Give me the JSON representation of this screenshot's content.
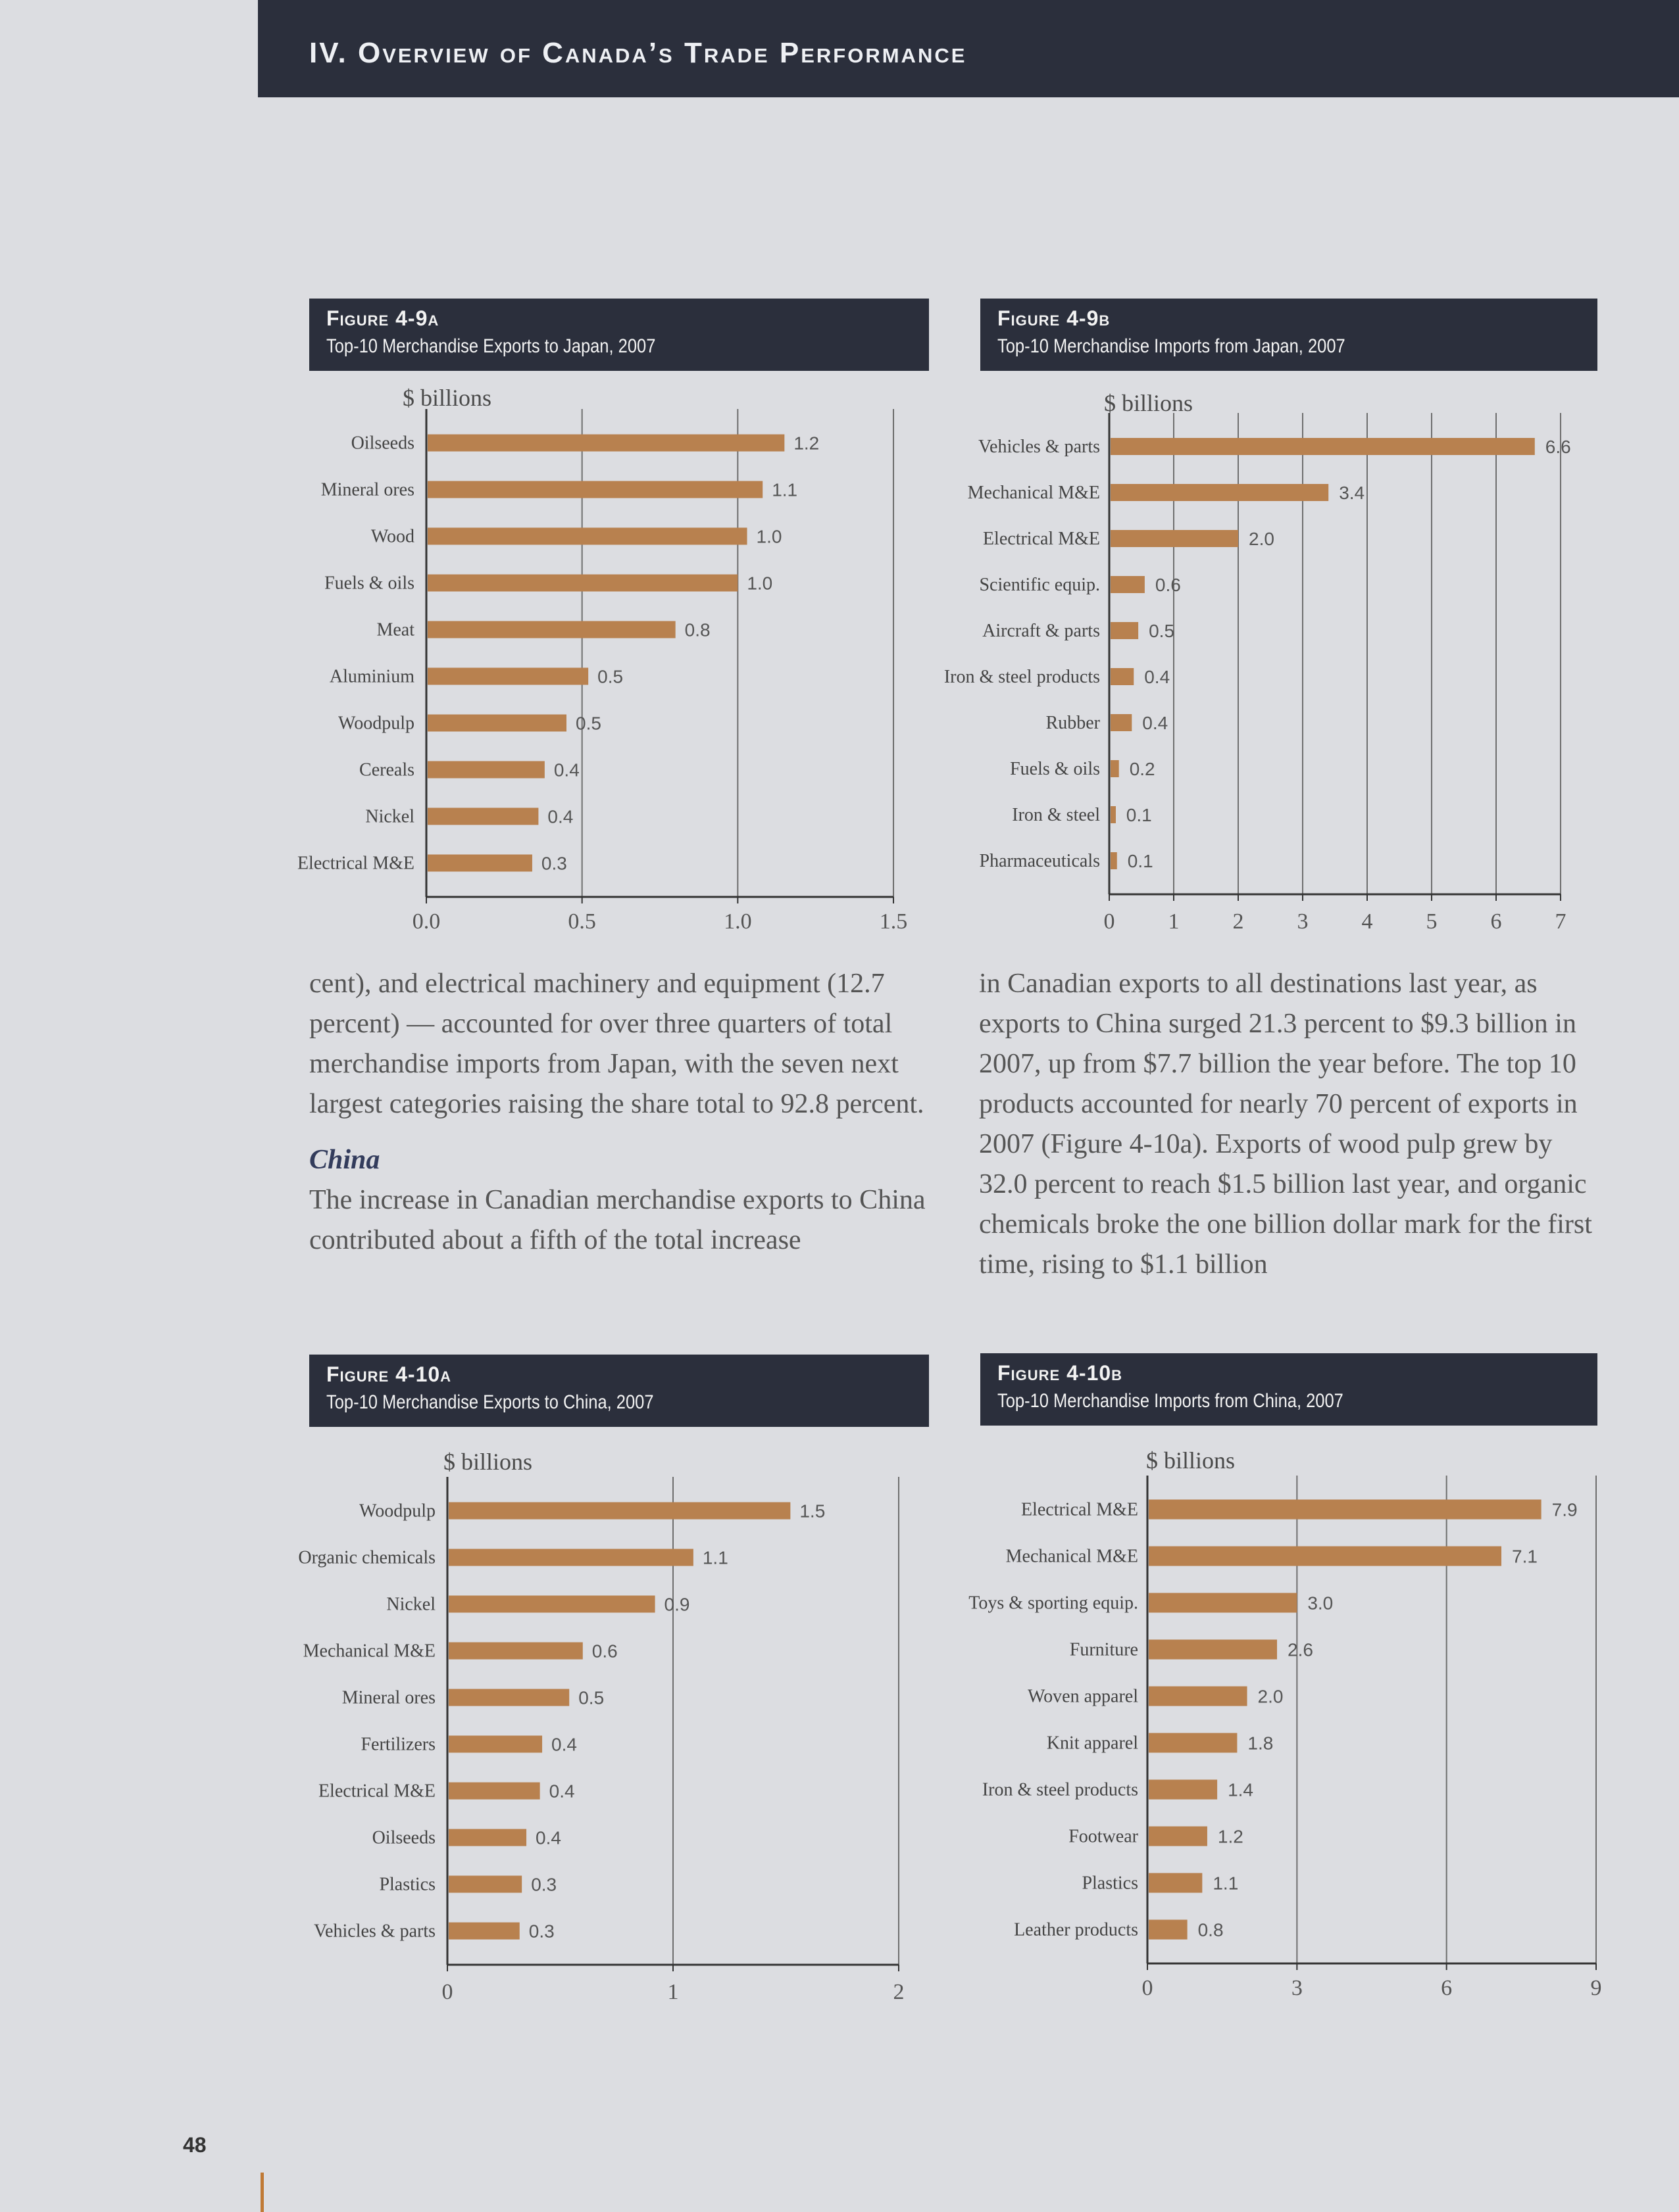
{
  "header": {
    "title": "IV. Overview of Canada’s Trade Performance"
  },
  "page_number": "48",
  "colors": {
    "bar": "#b8814f",
    "header_bg": "#2b2f3c",
    "heading_blue": "#333c5c"
  },
  "text": {
    "left_para": "cent), and electrical machinery and equipment (12.7 percent) — accounted for over three quarters of total merchandise imports from Japan, with the seven next largest categories raising the share total to 92.8 percent.",
    "china_heading": "China",
    "china_para": "The increase in Canadian merchandise exports to China contributed about a fifth of the total increase",
    "right_para": "in Canadian exports to all destinations last year, as exports to China surged 21.3 percent to $9.3 billion in 2007, up from $7.7 billion the year before. The top 10 products accounted for nearly 70 percent of exports in 2007 (Figure 4-10a). Exports of wood pulp grew by 32.0 percent to reach $1.5 billion last year, and organic chemicals broke the one billion dollar mark for the first time, rising to $1.1 billion"
  },
  "figures": [
    {
      "number": "Figure 4-9a",
      "title": "Top-10 Merchandise Exports to Japan, 2007",
      "unit": "$ billions"
    },
    {
      "number": "Figure 4-9b",
      "title": "Top-10 Merchandise Imports from Japan, 2007",
      "unit": "$ billions"
    },
    {
      "number": "Figure 4-10a",
      "title": "Top-10 Merchandise Exports to China, 2007",
      "unit": "$ billions"
    },
    {
      "number": "Figure 4-10b",
      "title": "Top-10 Merchandise Imports from China, 2007",
      "unit": "$ billions"
    }
  ],
  "chart_data": [
    {
      "type": "bar",
      "title": "Top-10 Merchandise Exports to Japan, 2007",
      "ylabel": "$ billions",
      "categories": [
        "Oilseeds",
        "Mineral ores",
        "Wood",
        "Fuels & oils",
        "Meat",
        "Aluminium",
        "Woodpulp",
        "Cereals",
        "Nickel",
        "Electrical M&E"
      ],
      "values": [
        1.15,
        1.08,
        1.03,
        1.0,
        0.8,
        0.52,
        0.45,
        0.38,
        0.36,
        0.34
      ],
      "value_labels": [
        "1.2",
        "1.1",
        "1.0",
        "1.0",
        "0.8",
        "0.5",
        "0.5",
        "0.4",
        "0.4",
        "0.3"
      ],
      "xlim": [
        0,
        1.5
      ],
      "ticks": [
        "0.0",
        "0.5",
        "1.0",
        "1.5"
      ],
      "tick_values": [
        0,
        0.5,
        1.0,
        1.5
      ],
      "grid": true
    },
    {
      "type": "bar",
      "title": "Top-10 Merchandise Imports from Japan, 2007",
      "ylabel": "$ billions",
      "categories": [
        "Vehicles & parts",
        "Mechanical M&E",
        "Electrical M&E",
        "Scientific equip.",
        "Aircraft & parts",
        "Iron & steel products",
        "Rubber",
        "Fuels & oils",
        "Iron & steel",
        "Pharmaceuticals"
      ],
      "values": [
        6.6,
        3.4,
        2.0,
        0.55,
        0.45,
        0.38,
        0.35,
        0.15,
        0.1,
        0.12
      ],
      "value_labels": [
        "6.6",
        "3.4",
        "2.0",
        "0.6",
        "0.5",
        "0.4",
        "0.4",
        "0.2",
        "0.1",
        "0.1"
      ],
      "xlim": [
        0,
        7
      ],
      "ticks": [
        "0",
        "1",
        "2",
        "3",
        "4",
        "5",
        "6",
        "7"
      ],
      "tick_values": [
        0,
        1,
        2,
        3,
        4,
        5,
        6,
        7
      ],
      "grid": true
    },
    {
      "type": "bar",
      "title": "Top-10 Merchandise Exports to China, 2007",
      "ylabel": "$ billions",
      "categories": [
        "Woodpulp",
        "Organic chemicals",
        "Nickel",
        "Mechanical M&E",
        "Mineral ores",
        "Fertilizers",
        "Electrical M&E",
        "Oilseeds",
        "Plastics",
        "Vehicles & parts"
      ],
      "values": [
        1.52,
        1.09,
        0.92,
        0.6,
        0.54,
        0.42,
        0.41,
        0.35,
        0.33,
        0.32
      ],
      "value_labels": [
        "1.5",
        "1.1",
        "0.9",
        "0.6",
        "0.5",
        "0.4",
        "0.4",
        "0.4",
        "0.3",
        "0.3"
      ],
      "xlim": [
        0,
        2
      ],
      "ticks": [
        "0",
        "1",
        "2"
      ],
      "tick_values": [
        0,
        1,
        2
      ],
      "grid": true
    },
    {
      "type": "bar",
      "title": "Top-10 Merchandise Imports from China, 2007",
      "ylabel": "$ billions",
      "categories": [
        "Electrical M&E",
        "Mechanical M&E",
        "Toys & sporting equip.",
        "Furniture",
        "Woven apparel",
        "Knit apparel",
        "Iron & steel products",
        "Footwear",
        "Plastics",
        "Leather products"
      ],
      "values": [
        7.9,
        7.1,
        3.0,
        2.6,
        2.0,
        1.8,
        1.4,
        1.2,
        1.1,
        0.8
      ],
      "value_labels": [
        "7.9",
        "7.1",
        "3.0",
        "2.6",
        "2.0",
        "1.8",
        "1.4",
        "1.2",
        "1.1",
        "0.8"
      ],
      "xlim": [
        0,
        9
      ],
      "ticks": [
        "0",
        "3",
        "6",
        "9"
      ],
      "tick_values": [
        0,
        3,
        6,
        9
      ],
      "grid": true
    }
  ]
}
